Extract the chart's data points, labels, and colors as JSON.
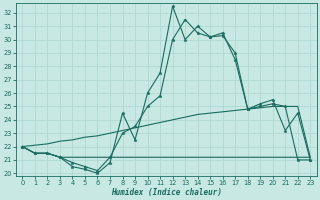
{
  "xlabel": "Humidex (Indice chaleur)",
  "background_color": "#c8e8e3",
  "grid_color": "#b0d8d2",
  "line_color": "#1a6b60",
  "xlim": [
    -0.5,
    23.5
  ],
  "ylim": [
    19.8,
    32.7
  ],
  "yticks": [
    20,
    21,
    22,
    23,
    24,
    25,
    26,
    27,
    28,
    29,
    30,
    31,
    32
  ],
  "xticks": [
    0,
    1,
    2,
    3,
    4,
    5,
    6,
    7,
    8,
    9,
    10,
    11,
    12,
    13,
    14,
    15,
    16,
    17,
    18,
    19,
    20,
    21,
    22,
    23
  ],
  "line_main": [
    22.0,
    21.5,
    21.5,
    21.2,
    20.5,
    20.3,
    20.0,
    20.8,
    24.5,
    22.5,
    26.0,
    27.5,
    32.5,
    30.0,
    31.0,
    30.2,
    30.5,
    28.5,
    24.8,
    25.0,
    25.2,
    25.0,
    21.0,
    21.0
  ],
  "line_secondary": [
    22.0,
    21.5,
    21.5,
    21.2,
    20.8,
    20.5,
    20.2,
    21.2,
    23.0,
    23.5,
    25.0,
    25.8,
    30.0,
    31.5,
    30.5,
    30.2,
    30.3,
    29.0,
    24.8,
    25.2,
    25.5,
    23.2,
    24.5,
    21.0
  ],
  "line_flat": [
    22.0,
    21.5,
    21.5,
    21.2,
    21.2,
    21.2,
    21.2,
    21.2,
    21.2,
    21.2,
    21.2,
    21.2,
    21.2,
    21.2,
    21.2,
    21.2,
    21.2,
    21.2,
    21.2,
    21.2,
    21.2,
    21.2,
    21.2,
    21.2
  ],
  "line_trend": [
    22.0,
    22.1,
    22.2,
    22.4,
    22.5,
    22.7,
    22.8,
    23.0,
    23.2,
    23.4,
    23.6,
    23.8,
    24.0,
    24.2,
    24.4,
    24.5,
    24.6,
    24.7,
    24.8,
    24.9,
    25.0,
    25.0,
    25.0,
    21.2
  ]
}
